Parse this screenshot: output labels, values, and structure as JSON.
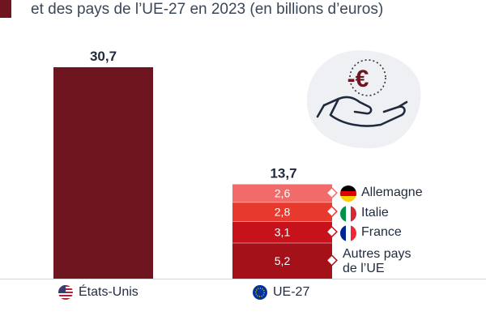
{
  "title_line": "et des pays de l’UE-27 en 2023 (en billions d’euros)",
  "colors": {
    "us_bar": "#6e1520",
    "allemagne": "#f26a6a",
    "italie": "#e8392f",
    "france": "#c8121b",
    "autres": "#a41119",
    "accent": "#6e1520"
  },
  "icons": [
    "minus-euro-coin-icon",
    "open-hand-icon",
    "us-flag-icon",
    "eu-flag-icon",
    "germany-flag-icon",
    "italy-flag-icon",
    "france-flag-icon"
  ],
  "illustration_symbol": "-€",
  "chart_data": {
    "type": "bar",
    "ylim": [
      0,
      30.7
    ],
    "bars": [
      {
        "category": "États-Unis",
        "value": 30.7,
        "label": "30,7"
      },
      {
        "category": "UE-27",
        "value": 13.7,
        "label": "13,7",
        "segments": [
          {
            "name": "Autres pays de l’UE",
            "value": 5.2,
            "label": "5,2"
          },
          {
            "name": "France",
            "value": 3.1,
            "label": "3,1"
          },
          {
            "name": "Italie",
            "value": 2.8,
            "label": "2,8"
          },
          {
            "name": "Allemagne",
            "value": 2.6,
            "label": "2,6"
          }
        ]
      }
    ],
    "legend": [
      "Allemagne",
      "Italie",
      "France",
      "Autres pays de l’UE"
    ]
  },
  "labels": {
    "us": "États-Unis",
    "eu": "UE-27",
    "allemagne": "Allemagne",
    "italie": "Italie",
    "france": "France",
    "autres_line1": "Autres pays",
    "autres_line2": "de l’UE"
  }
}
